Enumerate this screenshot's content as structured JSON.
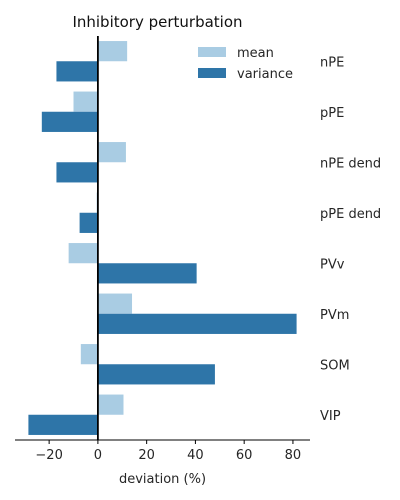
{
  "chart_data": {
    "type": "bar",
    "orientation": "horizontal",
    "title": "Inhibitory perturbation",
    "xlabel": "deviation (%)",
    "ylabel": "",
    "xlim": [
      -34,
      87
    ],
    "xticks": [
      -20,
      0,
      20,
      40,
      60,
      80
    ],
    "xtick_labels": [
      "−20",
      "0",
      "20",
      "40",
      "60",
      "80"
    ],
    "categories": [
      "nPE",
      "pPE",
      "nPE dend",
      "pPE dend",
      "PVv",
      "PVm",
      "SOM",
      "VIP"
    ],
    "category_label_position": "right",
    "series": [
      {
        "name": "mean",
        "color": "#a9cce3",
        "values": [
          12,
          -10,
          11.5,
          -0.5,
          -12,
          14,
          -7,
          10.5
        ]
      },
      {
        "name": "variance",
        "color": "#2e75a8",
        "values": [
          -17,
          -23,
          -17,
          -7.5,
          40.5,
          81.5,
          48,
          -28.5
        ]
      }
    ],
    "legend": {
      "placement": "top-right",
      "entries": [
        "mean",
        "variance"
      ]
    },
    "grid": false
  }
}
